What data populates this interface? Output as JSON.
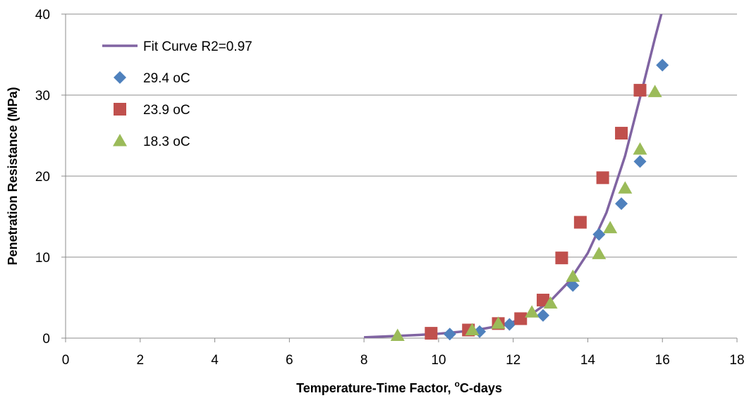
{
  "chart_data": {
    "type": "scatter",
    "xlabel": "Temperature-Time Factor, ",
    "xlabel_sup": "o",
    "xlabel_unit": "C-days",
    "ylabel": "Penetration Resistance (MPa)",
    "xlim": [
      0,
      18
    ],
    "ylim": [
      0,
      40
    ],
    "xticks": [
      "0",
      "2",
      "4",
      "6",
      "8",
      "10",
      "12",
      "14",
      "16",
      "18"
    ],
    "yticks": [
      "0",
      "10",
      "20",
      "30",
      "40"
    ],
    "grid": "horizontal",
    "legend_position": "top-left",
    "fit_curve": {
      "name": "Fit Curve R2=0.97",
      "color": "#8064A2",
      "x": [
        8.0,
        8.5,
        9.0,
        9.5,
        10.0,
        10.5,
        11.0,
        11.5,
        12.0,
        12.5,
        13.0,
        13.5,
        14.0,
        14.5,
        15.0,
        15.5,
        15.8,
        16.0
      ],
      "y": [
        0.1,
        0.2,
        0.3,
        0.4,
        0.55,
        0.75,
        1.0,
        1.4,
        2.0,
        3.0,
        4.6,
        7.0,
        10.5,
        15.5,
        22.5,
        31.5,
        37.0,
        40.5
      ]
    },
    "series": [
      {
        "name": "29.4 oC",
        "marker": "diamond",
        "color": "#4F81BD",
        "x": [
          10.3,
          11.1,
          11.9,
          12.8,
          13.6,
          14.3,
          14.9,
          15.4,
          16.0
        ],
        "y": [
          0.5,
          0.8,
          1.7,
          2.8,
          6.5,
          12.8,
          16.6,
          21.8,
          33.7
        ]
      },
      {
        "name": "23.9 oC",
        "marker": "square",
        "color": "#C0504D",
        "x": [
          9.8,
          10.8,
          11.6,
          12.2,
          12.8,
          13.3,
          13.8,
          14.4,
          14.9,
          15.4
        ],
        "y": [
          0.6,
          1.0,
          1.8,
          2.4,
          4.7,
          9.9,
          14.3,
          19.8,
          25.3,
          30.6
        ]
      },
      {
        "name": "18.3 oC",
        "marker": "triangle",
        "color": "#9BBB59",
        "x": [
          8.9,
          10.9,
          11.6,
          12.5,
          13.0,
          13.6,
          14.3,
          14.6,
          15.0,
          15.4,
          15.8
        ],
        "y": [
          0.3,
          1.0,
          1.8,
          3.2,
          4.3,
          7.6,
          10.4,
          13.6,
          18.5,
          23.3,
          30.4
        ]
      }
    ]
  }
}
